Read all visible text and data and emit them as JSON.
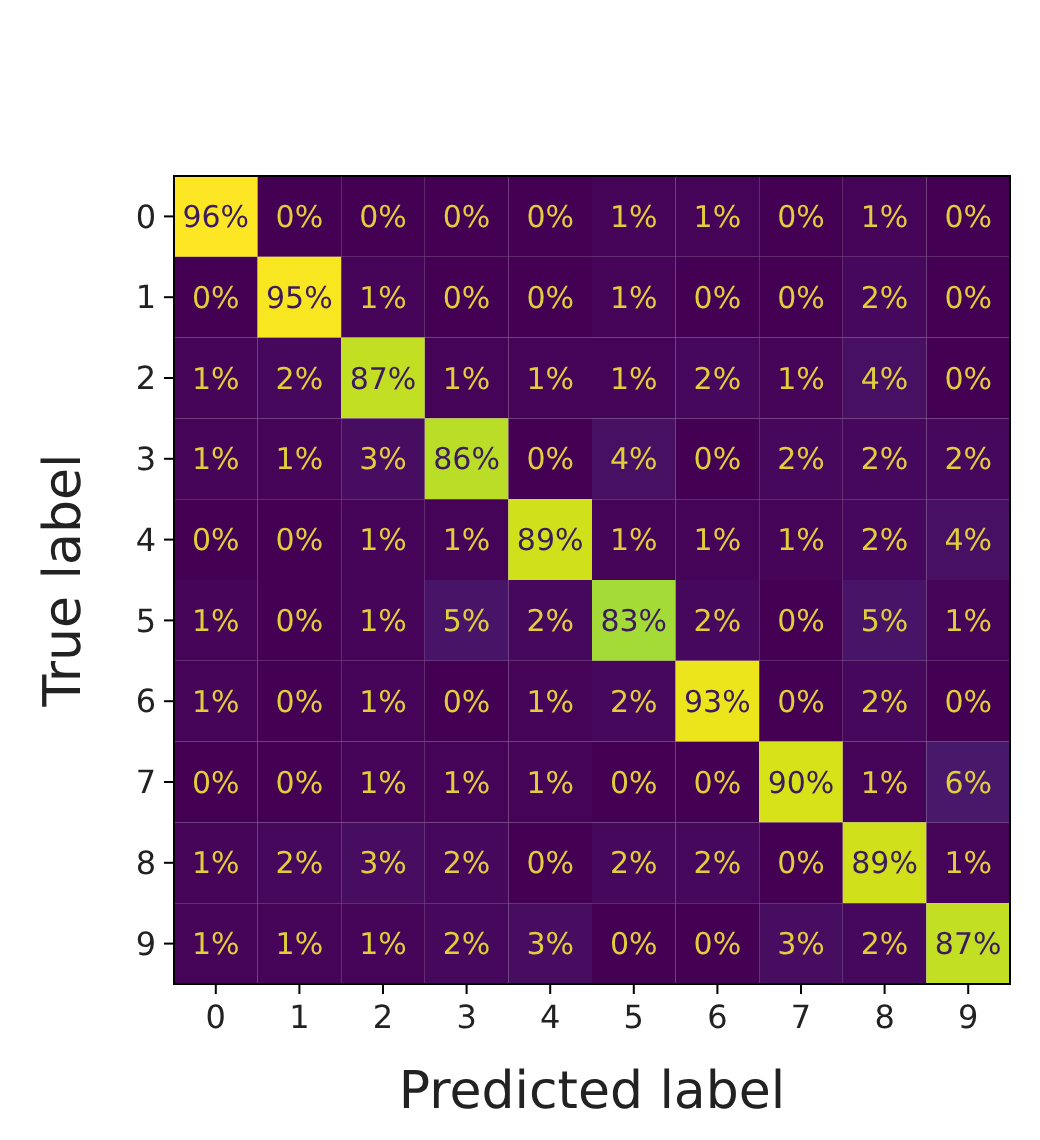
{
  "chart_data": {
    "type": "heatmap",
    "xlabel": "Predicted label",
    "ylabel": "True label",
    "categories": [
      "0",
      "1",
      "2",
      "3",
      "4",
      "5",
      "6",
      "7",
      "8",
      "9"
    ],
    "y_categories": [
      "0",
      "1",
      "2",
      "3",
      "4",
      "5",
      "6",
      "7",
      "8",
      "9"
    ],
    "cells": [
      [
        96,
        0,
        0,
        0,
        0,
        1,
        1,
        0,
        1,
        0
      ],
      [
        0,
        95,
        1,
        0,
        0,
        1,
        0,
        0,
        2,
        0
      ],
      [
        1,
        2,
        87,
        1,
        1,
        1,
        2,
        1,
        4,
        0
      ],
      [
        1,
        1,
        3,
        86,
        0,
        4,
        0,
        2,
        2,
        2
      ],
      [
        0,
        0,
        1,
        1,
        89,
        1,
        1,
        1,
        2,
        4
      ],
      [
        1,
        0,
        1,
        5,
        2,
        83,
        2,
        0,
        5,
        1
      ],
      [
        1,
        0,
        1,
        0,
        1,
        2,
        93,
        0,
        2,
        0
      ],
      [
        0,
        0,
        1,
        1,
        1,
        0,
        0,
        90,
        1,
        6
      ],
      [
        1,
        2,
        3,
        2,
        0,
        2,
        2,
        0,
        89,
        1
      ],
      [
        1,
        1,
        1,
        2,
        3,
        0,
        0,
        3,
        2,
        87
      ]
    ],
    "cell_labels": [
      [
        "96%",
        "0%",
        "0%",
        "0%",
        "0%",
        "1%",
        "1%",
        "0%",
        "1%",
        "0%"
      ],
      [
        "0%",
        "95%",
        "1%",
        "0%",
        "0%",
        "1%",
        "0%",
        "0%",
        "2%",
        "0%"
      ],
      [
        "1%",
        "2%",
        "87%",
        "1%",
        "1%",
        "1%",
        "2%",
        "1%",
        "4%",
        "0%"
      ],
      [
        "1%",
        "1%",
        "3%",
        "86%",
        "0%",
        "4%",
        "0%",
        "2%",
        "2%",
        "2%"
      ],
      [
        "0%",
        "0%",
        "1%",
        "1%",
        "89%",
        "1%",
        "1%",
        "1%",
        "2%",
        "4%"
      ],
      [
        "1%",
        "0%",
        "1%",
        "5%",
        "2%",
        "83%",
        "2%",
        "0%",
        "5%",
        "1%"
      ],
      [
        "1%",
        "0%",
        "1%",
        "0%",
        "1%",
        "2%",
        "93%",
        "0%",
        "2%",
        "0%"
      ],
      [
        "0%",
        "0%",
        "1%",
        "1%",
        "1%",
        "0%",
        "0%",
        "90%",
        "1%",
        "6%"
      ],
      [
        "1%",
        "2%",
        "3%",
        "2%",
        "0%",
        "2%",
        "2%",
        "0%",
        "89%",
        "1%"
      ],
      [
        "1%",
        "1%",
        "1%",
        "2%",
        "3%",
        "0%",
        "0%",
        "3%",
        "2%",
        "87%"
      ]
    ]
  }
}
